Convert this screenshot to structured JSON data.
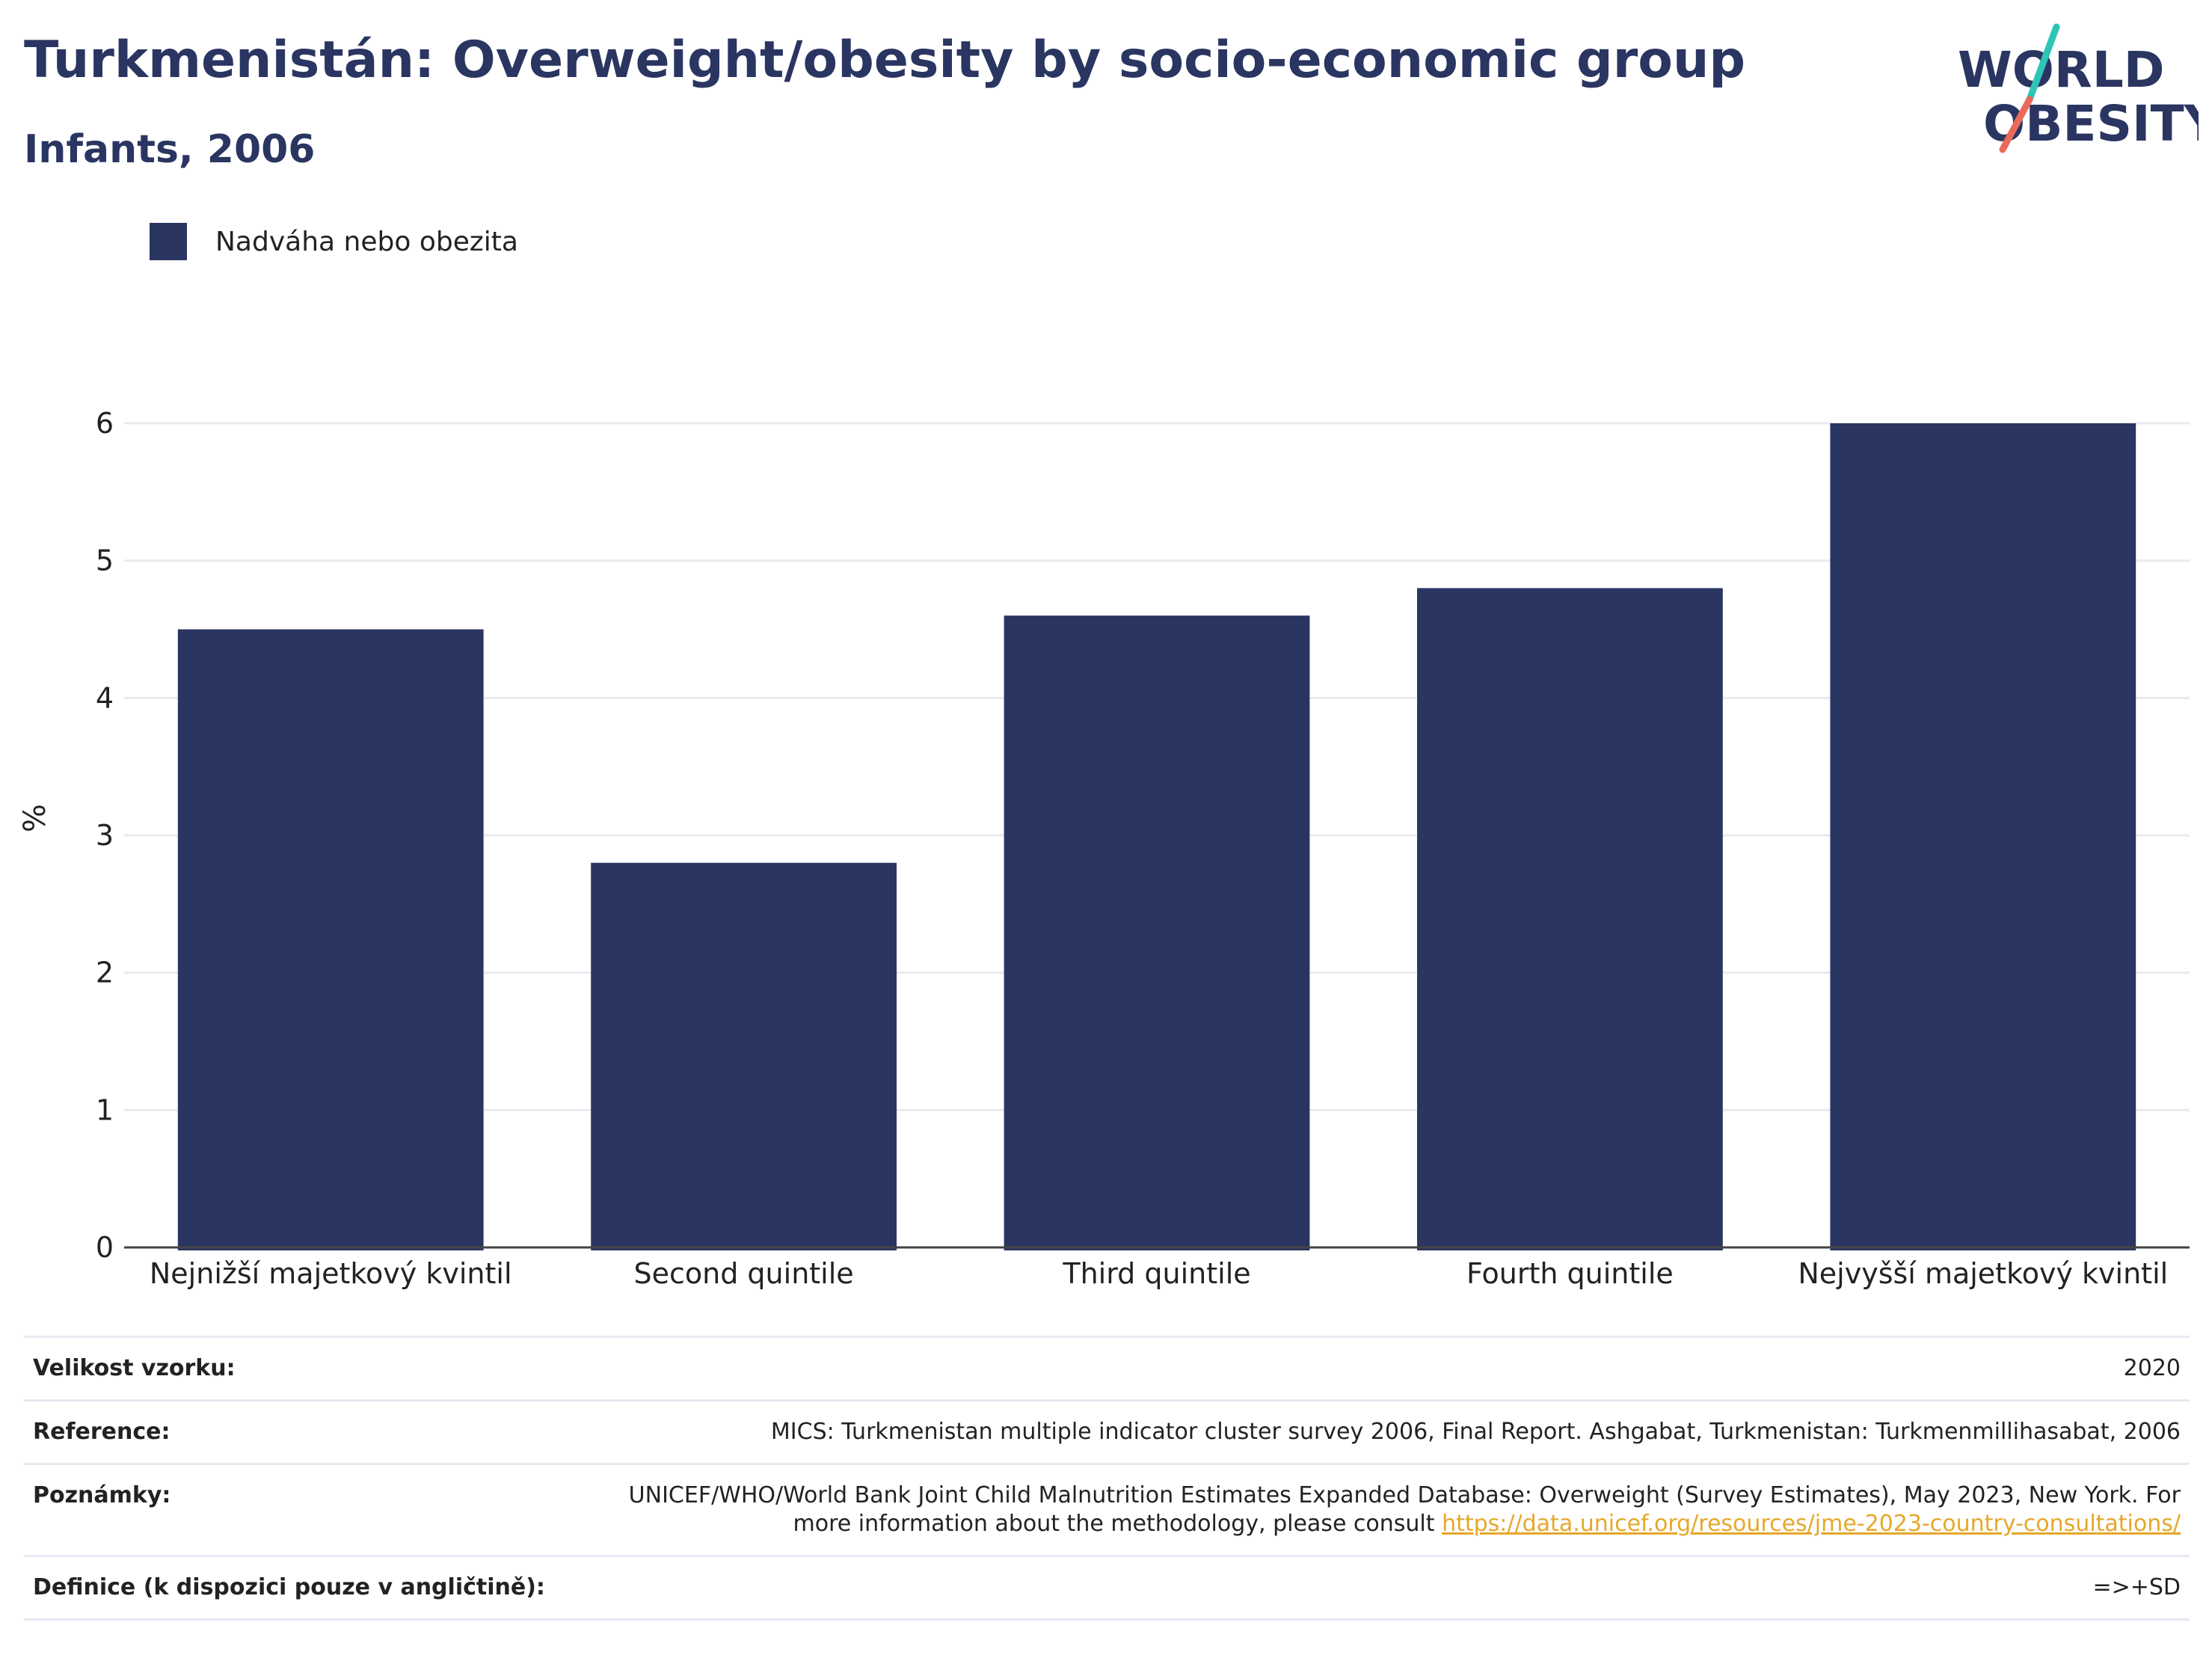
{
  "header": {
    "title": "Turkmenistán: Overweight/obesity by socio-economic group",
    "subtitle": "Infants, 2006"
  },
  "logo": {
    "line1": "WORLD",
    "line2": "OBESITY",
    "colors": {
      "text": "#2a3561",
      "slash_top": "#2ec4b6",
      "slash_bottom": "#ea6a5a"
    }
  },
  "legend": {
    "label": "Nadváha nebo obezita",
    "color": "#2a3561"
  },
  "chart_data": {
    "type": "bar",
    "title": "Turkmenistán: Overweight/obesity by socio-economic group",
    "subtitle": "Infants, 2006",
    "categories": [
      "Nejnižší majetkový kvintil",
      "Second quintile",
      "Third quintile",
      "Fourth quintile",
      "Nejvyšší majetkový kvintil"
    ],
    "series": [
      {
        "name": "Nadváha nebo obezita",
        "values": [
          4.5,
          2.8,
          4.6,
          4.8,
          6.0
        ],
        "color": "#2a3561"
      }
    ],
    "xlabel": "",
    "ylabel": "%",
    "ylim": [
      0,
      6.6
    ],
    "yticks": [
      0,
      1,
      2,
      3,
      4,
      5,
      6
    ],
    "grid": true,
    "legend_position": "top-left"
  },
  "info": {
    "sample_size": {
      "label": "Velikost vzorku:",
      "value": "2020"
    },
    "reference": {
      "label": "Reference:",
      "value": "MICS: Turkmenistan multiple indicator cluster survey 2006, Final Report. Ashgabat, Turkmenistan: Turkmenmillihasabat, 2006"
    },
    "notes": {
      "label": "Poznámky:",
      "text": "UNICEF/WHO/World Bank Joint Child Malnutrition Estimates Expanded Database: Overweight (Survey Estimates), May 2023, New York. For more information about the methodology, please consult",
      "link": "https://data.unicef.org/resources/jme-2023-country-consultations/"
    },
    "definition": {
      "label": "Definice (k dispozici pouze v angličtině):",
      "value": "=>+SD"
    }
  }
}
